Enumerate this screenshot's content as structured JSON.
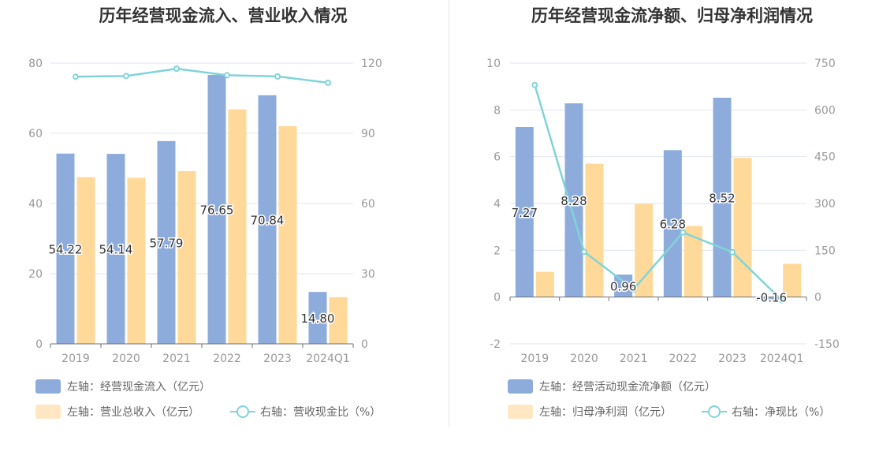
{
  "charts": [
    {
      "title": "历年经营现金流入、营业收入情况",
      "legend": {
        "bar1": "左轴：经营现金流入（亿元）",
        "bar2": "左轴：营业总收入（亿元）",
        "line": "右轴：营收现金比（%）"
      }
    },
    {
      "title": "历年经营现金流净额、归母净利润情况",
      "legend": {
        "bar1": "左轴：经营活动现金流净额（亿元）",
        "bar2": "左轴：归母净利润（亿元）",
        "line": "右轴：净现比（%）"
      }
    }
  ],
  "colors": {
    "bar1": "#8EACDB",
    "bar2": "#FFD999",
    "line": "#80D4D8",
    "legend_bar2_swatch": "#FFE7C4",
    "axis_text": "#999999",
    "grid": "#E0E6F1"
  },
  "chart_data": [
    {
      "type": "bar",
      "categories": [
        "2019",
        "2020",
        "2021",
        "2022",
        "2023",
        "2024Q1"
      ],
      "left_axis": {
        "ylim": [
          0,
          80
        ],
        "ticks": [
          0,
          20,
          40,
          60,
          80
        ]
      },
      "right_axis": {
        "ylim": [
          0,
          120
        ],
        "ticks": [
          0,
          30,
          60,
          90,
          120
        ]
      },
      "series": [
        {
          "name": "左轴：经营现金流入（亿元）",
          "type": "bar",
          "axis": "left",
          "values": [
            54.22,
            54.14,
            57.79,
            76.65,
            70.84,
            14.8
          ],
          "labels": [
            "54.22",
            "54.14",
            "57.79",
            "76.65",
            "70.84",
            "14.80"
          ]
        },
        {
          "name": "左轴：营业总收入（亿元）",
          "type": "bar",
          "axis": "left",
          "values": [
            47.5,
            47.3,
            49.2,
            66.8,
            62.0,
            13.3
          ]
        },
        {
          "name": "右轴：营收现金比（%）",
          "type": "line",
          "axis": "right",
          "values": [
            114.2,
            114.5,
            117.6,
            114.8,
            114.3,
            111.6
          ]
        }
      ]
    },
    {
      "type": "bar",
      "categories": [
        "2019",
        "2020",
        "2021",
        "2022",
        "2023",
        "2024Q1"
      ],
      "left_axis": {
        "ylim": [
          -2,
          10
        ],
        "ticks": [
          -2,
          0,
          2,
          4,
          6,
          8,
          10
        ]
      },
      "right_axis": {
        "ylim": [
          -150,
          750
        ],
        "ticks": [
          -150,
          0,
          150,
          300,
          450,
          600,
          750
        ]
      },
      "series": [
        {
          "name": "左轴：经营活动现金流净额（亿元）",
          "type": "bar",
          "axis": "left",
          "values": [
            7.27,
            8.28,
            0.96,
            6.28,
            8.52,
            -0.16
          ],
          "labels": [
            "7.27",
            "8.28",
            "0.96",
            "6.28",
            "8.52",
            "-0.16"
          ]
        },
        {
          "name": "左轴：归母净利润（亿元）",
          "type": "bar",
          "axis": "left",
          "values": [
            1.08,
            5.7,
            3.98,
            3.04,
            5.95,
            1.42
          ]
        },
        {
          "name": "右轴：净现比（%）",
          "type": "line",
          "axis": "right",
          "values": [
            680,
            145,
            25,
            207,
            144,
            -10
          ]
        }
      ]
    }
  ]
}
